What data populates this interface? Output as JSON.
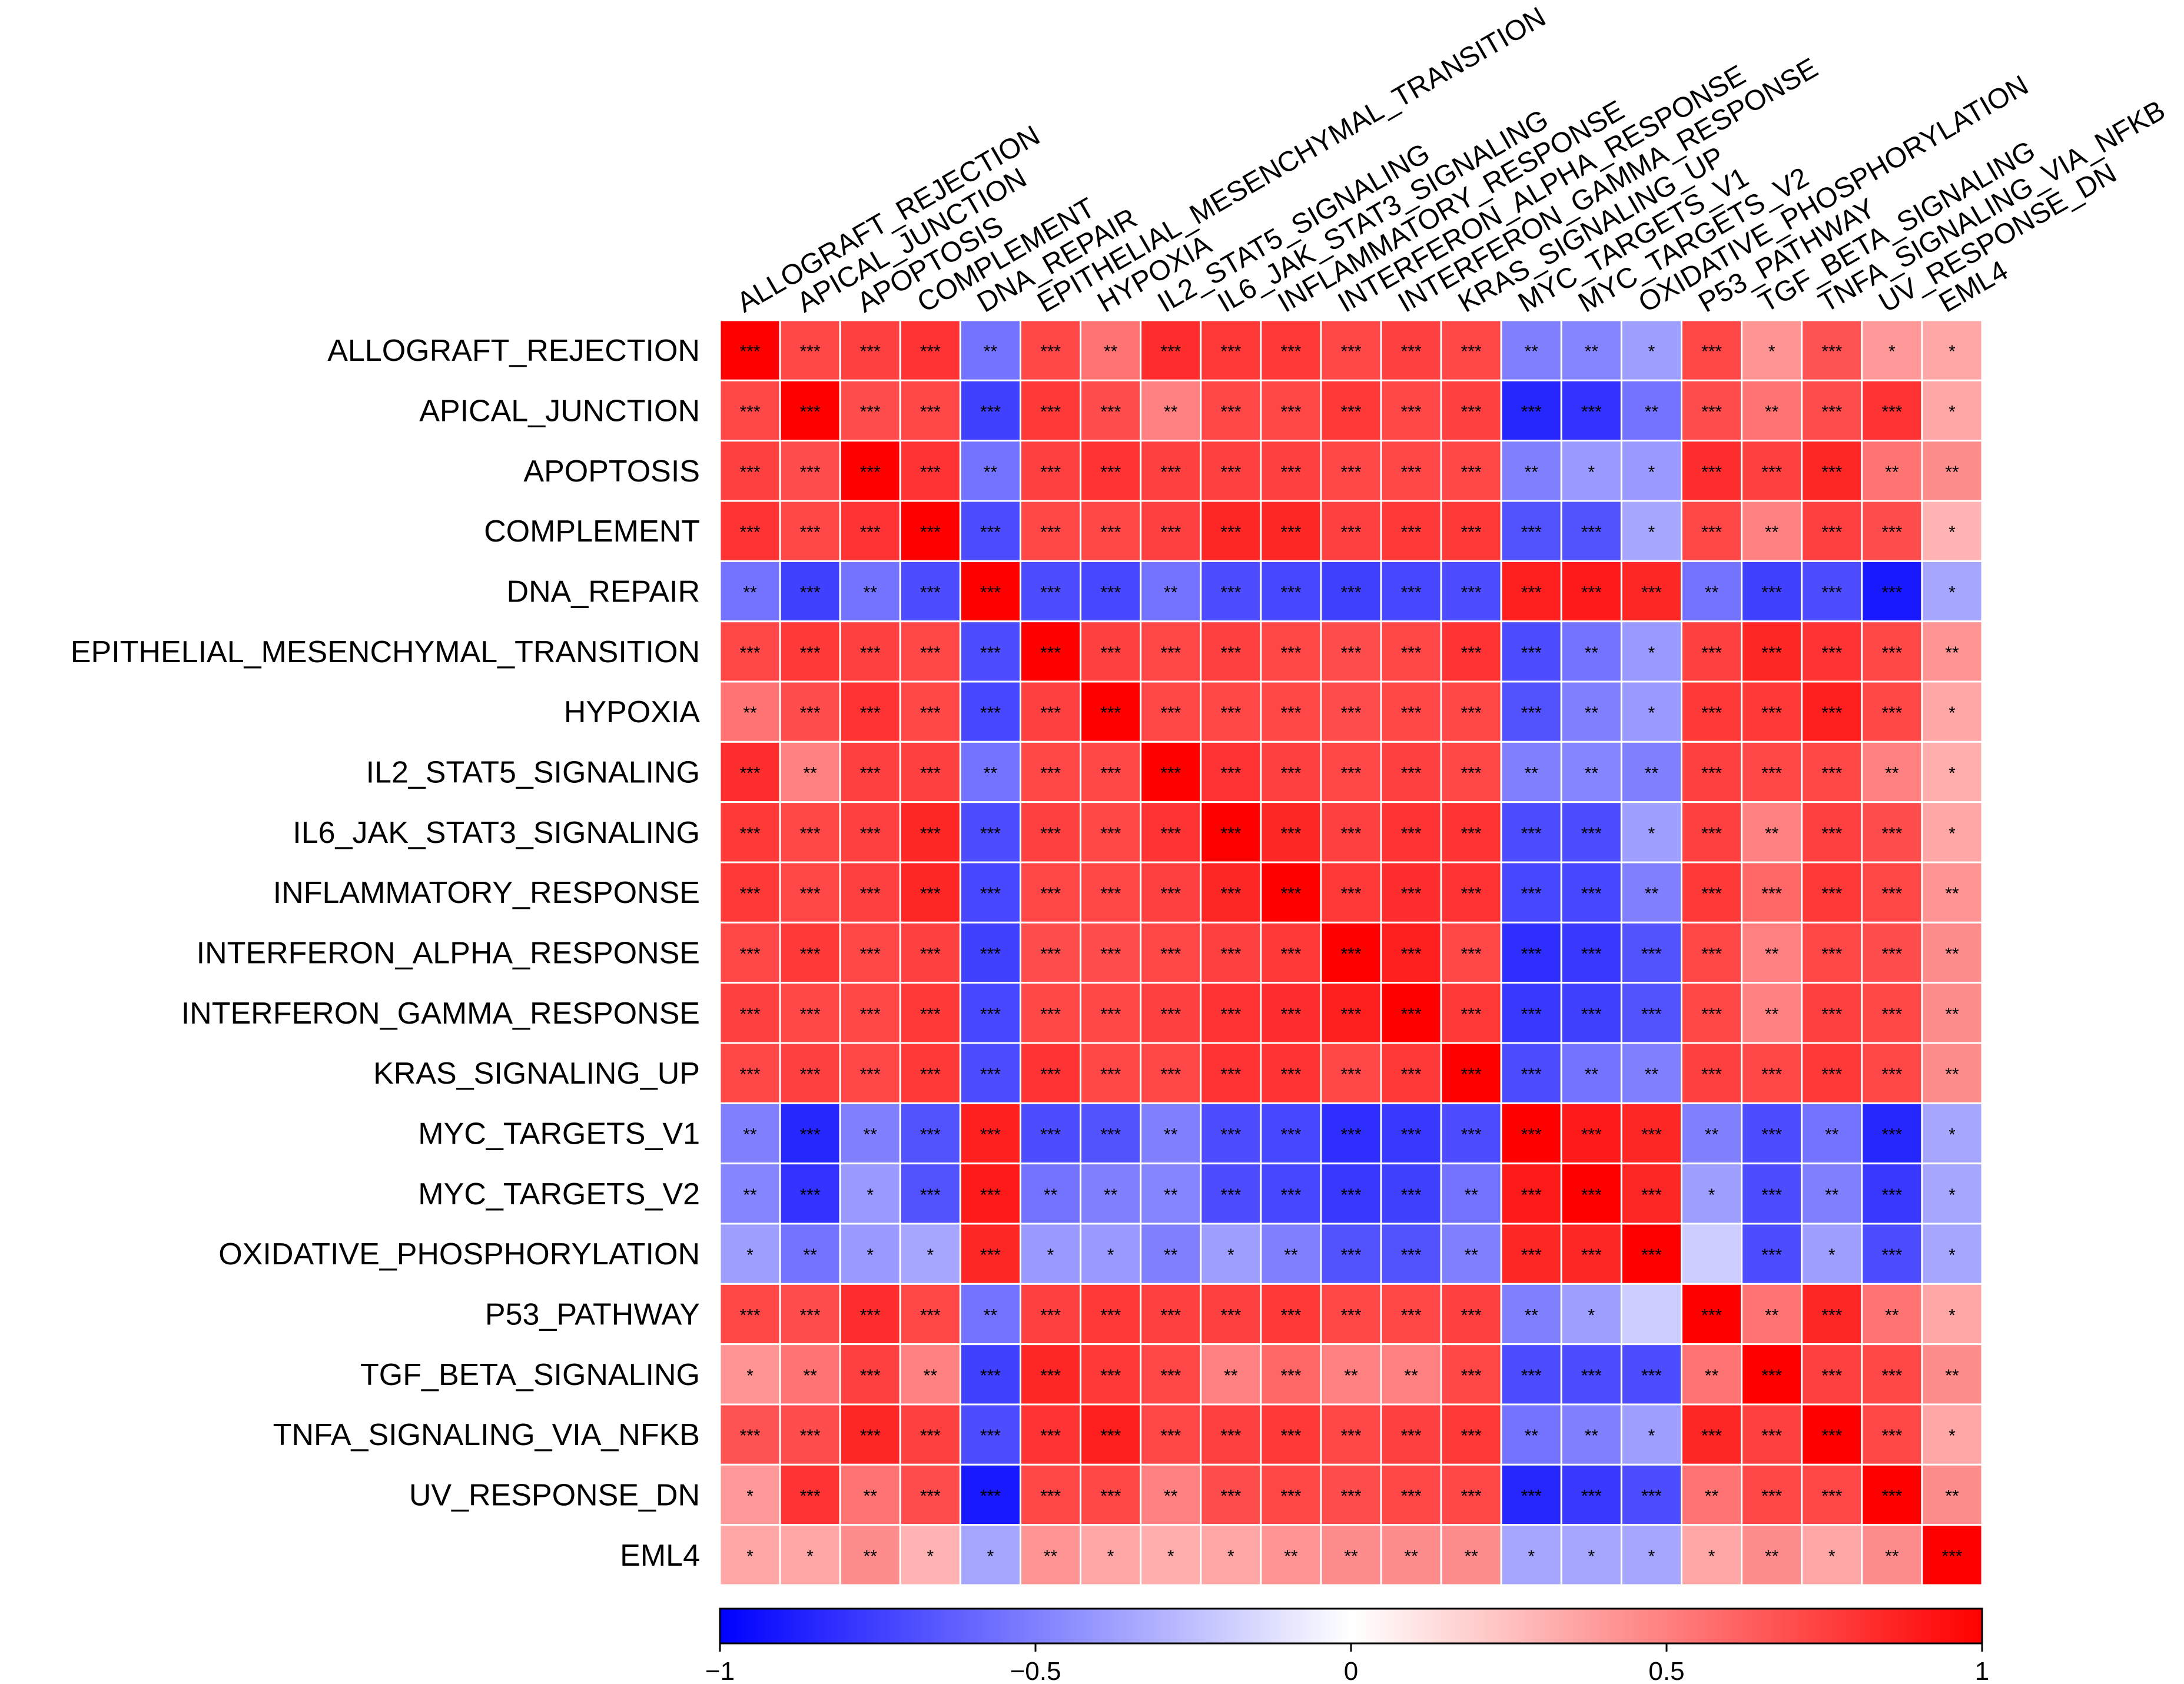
{
  "chart_data": {
    "type": "heatmap",
    "x_categories": [
      "ALLOGRAFT_REJECTION",
      "APICAL_JUNCTION",
      "APOPTOSIS",
      "COMPLEMENT",
      "DNA_REPAIR",
      "EPITHELIAL_MESENCHYMAL_TRANSITION",
      "HYPOXIA",
      "IL2_STAT5_SIGNALING",
      "IL6_JAK_STAT3_SIGNALING",
      "INFLAMMATORY_RESPONSE",
      "INTERFERON_ALPHA_RESPONSE",
      "INTERFERON_GAMMA_RESPONSE",
      "KRAS_SIGNALING_UP",
      "MYC_TARGETS_V1",
      "MYC_TARGETS_V2",
      "OXIDATIVE_PHOSPHORYLATION",
      "P53_PATHWAY",
      "TGF_BETA_SIGNALING",
      "TNFA_SIGNALING_VIA_NFKB",
      "UV_RESPONSE_DN",
      "EML4"
    ],
    "y_categories": [
      "ALLOGRAFT_REJECTION",
      "APICAL_JUNCTION",
      "APOPTOSIS",
      "COMPLEMENT",
      "DNA_REPAIR",
      "EPITHELIAL_MESENCHYMAL_TRANSITION",
      "HYPOXIA",
      "IL2_STAT5_SIGNALING",
      "IL6_JAK_STAT3_SIGNALING",
      "INFLAMMATORY_RESPONSE",
      "INTERFERON_ALPHA_RESPONSE",
      "INTERFERON_GAMMA_RESPONSE",
      "KRAS_SIGNALING_UP",
      "MYC_TARGETS_V1",
      "MYC_TARGETS_V2",
      "OXIDATIVE_PHOSPHORYLATION",
      "P53_PATHWAY",
      "TGF_BETA_SIGNALING",
      "TNFA_SIGNALING_VIA_NFKB",
      "UV_RESPONSE_DN",
      "EML4"
    ],
    "values": [
      [
        1,
        0.72,
        0.75,
        0.8,
        -0.55,
        0.72,
        0.55,
        0.82,
        0.78,
        0.78,
        0.72,
        0.75,
        0.72,
        -0.5,
        -0.48,
        -0.38,
        0.72,
        0.42,
        0.68,
        0.4,
        0.35
      ],
      [
        0.72,
        1,
        0.7,
        0.72,
        -0.75,
        0.78,
        0.7,
        0.5,
        0.72,
        0.72,
        0.78,
        0.72,
        0.75,
        -0.85,
        -0.8,
        -0.55,
        0.7,
        0.55,
        0.7,
        0.8,
        0.35
      ],
      [
        0.75,
        0.7,
        1,
        0.8,
        -0.55,
        0.75,
        0.8,
        0.75,
        0.75,
        0.75,
        0.72,
        0.72,
        0.72,
        -0.5,
        -0.4,
        -0.4,
        0.82,
        0.75,
        0.85,
        0.55,
        0.45
      ],
      [
        0.8,
        0.72,
        0.8,
        1,
        -0.7,
        0.72,
        0.72,
        0.75,
        0.85,
        0.85,
        0.75,
        0.78,
        0.78,
        -0.68,
        -0.68,
        -0.35,
        0.72,
        0.5,
        0.75,
        0.7,
        0.3
      ],
      [
        -0.55,
        -0.75,
        -0.55,
        -0.7,
        1,
        -0.7,
        -0.72,
        -0.55,
        -0.7,
        -0.72,
        -0.75,
        -0.72,
        -0.7,
        0.88,
        0.9,
        0.85,
        -0.55,
        -0.75,
        -0.7,
        -0.9,
        -0.35
      ],
      [
        0.72,
        0.78,
        0.75,
        0.72,
        -0.7,
        1,
        0.75,
        0.72,
        0.75,
        0.72,
        0.7,
        0.72,
        0.8,
        -0.7,
        -0.55,
        -0.4,
        0.75,
        0.85,
        0.8,
        0.72,
        0.42
      ],
      [
        0.55,
        0.7,
        0.8,
        0.72,
        -0.72,
        0.75,
        1,
        0.72,
        0.72,
        0.72,
        0.7,
        0.72,
        0.72,
        -0.68,
        -0.5,
        -0.4,
        0.78,
        0.78,
        0.88,
        0.72,
        0.35
      ],
      [
        0.82,
        0.5,
        0.75,
        0.75,
        -0.55,
        0.72,
        0.72,
        1,
        0.8,
        0.75,
        0.72,
        0.75,
        0.72,
        -0.5,
        -0.48,
        -0.5,
        0.75,
        0.72,
        0.72,
        0.5,
        0.32
      ],
      [
        0.78,
        0.72,
        0.75,
        0.85,
        -0.7,
        0.75,
        0.72,
        0.8,
        1,
        0.85,
        0.75,
        0.8,
        0.8,
        -0.7,
        -0.7,
        -0.38,
        0.75,
        0.5,
        0.75,
        0.7,
        0.35
      ],
      [
        0.78,
        0.72,
        0.75,
        0.85,
        -0.72,
        0.72,
        0.72,
        0.75,
        0.85,
        1,
        0.78,
        0.82,
        0.8,
        -0.72,
        -0.72,
        -0.5,
        0.78,
        0.6,
        0.78,
        0.72,
        0.42
      ],
      [
        0.72,
        0.78,
        0.72,
        0.75,
        -0.75,
        0.7,
        0.7,
        0.72,
        0.75,
        0.78,
        1,
        0.88,
        0.72,
        -0.82,
        -0.78,
        -0.68,
        0.72,
        0.5,
        0.72,
        0.7,
        0.45
      ],
      [
        0.75,
        0.72,
        0.72,
        0.78,
        -0.72,
        0.72,
        0.72,
        0.75,
        0.8,
        0.82,
        0.88,
        1,
        0.78,
        -0.78,
        -0.75,
        -0.68,
        0.72,
        0.5,
        0.75,
        0.72,
        0.45
      ],
      [
        0.72,
        0.75,
        0.72,
        0.78,
        -0.7,
        0.8,
        0.72,
        0.72,
        0.8,
        0.8,
        0.72,
        0.78,
        1,
        -0.7,
        -0.55,
        -0.5,
        0.75,
        0.72,
        0.78,
        0.72,
        0.45
      ],
      [
        -0.5,
        -0.85,
        -0.5,
        -0.68,
        0.88,
        -0.7,
        -0.68,
        -0.5,
        -0.7,
        -0.72,
        -0.82,
        -0.78,
        -0.7,
        1,
        0.9,
        0.85,
        -0.5,
        -0.7,
        -0.55,
        -0.85,
        -0.35
      ],
      [
        -0.48,
        -0.8,
        -0.4,
        -0.68,
        0.9,
        -0.55,
        -0.5,
        -0.48,
        -0.7,
        -0.72,
        -0.78,
        -0.75,
        -0.55,
        0.9,
        1,
        0.85,
        -0.38,
        -0.7,
        -0.5,
        -0.78,
        -0.35
      ],
      [
        -0.38,
        -0.55,
        -0.4,
        -0.35,
        0.85,
        -0.4,
        -0.4,
        -0.5,
        -0.38,
        -0.5,
        -0.68,
        -0.68,
        -0.5,
        0.85,
        0.85,
        1,
        -0.2,
        -0.7,
        -0.38,
        -0.7,
        -0.35
      ],
      [
        0.72,
        0.7,
        0.82,
        0.72,
        -0.55,
        0.75,
        0.78,
        0.75,
        0.75,
        0.78,
        0.72,
        0.72,
        0.75,
        -0.5,
        -0.38,
        -0.2,
        1,
        0.55,
        0.85,
        0.55,
        0.35
      ],
      [
        0.42,
        0.55,
        0.75,
        0.5,
        -0.75,
        0.85,
        0.78,
        0.72,
        0.5,
        0.6,
        0.5,
        0.5,
        0.72,
        -0.7,
        -0.7,
        -0.7,
        0.55,
        1,
        0.75,
        0.72,
        0.45
      ],
      [
        0.68,
        0.7,
        0.85,
        0.75,
        -0.7,
        0.8,
        0.88,
        0.72,
        0.75,
        0.78,
        0.72,
        0.75,
        0.78,
        -0.55,
        -0.5,
        -0.38,
        0.85,
        0.75,
        1,
        0.72,
        0.35
      ],
      [
        0.4,
        0.8,
        0.55,
        0.7,
        -0.9,
        0.72,
        0.72,
        0.5,
        0.7,
        0.72,
        0.7,
        0.72,
        0.72,
        -0.85,
        -0.78,
        -0.7,
        0.55,
        0.72,
        0.72,
        1,
        0.45
      ],
      [
        0.35,
        0.35,
        0.45,
        0.3,
        -0.35,
        0.42,
        0.35,
        0.32,
        0.35,
        0.42,
        0.45,
        0.45,
        0.45,
        -0.35,
        -0.35,
        -0.35,
        0.35,
        0.45,
        0.35,
        0.45,
        1
      ]
    ],
    "annotations": [
      [
        "***",
        "***",
        "***",
        "***",
        "**",
        "***",
        "**",
        "***",
        "***",
        "***",
        "***",
        "***",
        "***",
        "**",
        "**",
        "*",
        "***",
        "*",
        "***",
        "*",
        "*"
      ],
      [
        "***",
        "***",
        "***",
        "***",
        "***",
        "***",
        "***",
        "**",
        "***",
        "***",
        "***",
        "***",
        "***",
        "***",
        "***",
        "**",
        "***",
        "**",
        "***",
        "***",
        "*"
      ],
      [
        "***",
        "***",
        "***",
        "***",
        "**",
        "***",
        "***",
        "***",
        "***",
        "***",
        "***",
        "***",
        "***",
        "**",
        "*",
        "*",
        "***",
        "***",
        "***",
        "**",
        "**"
      ],
      [
        "***",
        "***",
        "***",
        "***",
        "***",
        "***",
        "***",
        "***",
        "***",
        "***",
        "***",
        "***",
        "***",
        "***",
        "***",
        "*",
        "***",
        "**",
        "***",
        "***",
        "*"
      ],
      [
        "**",
        "***",
        "**",
        "***",
        "***",
        "***",
        "***",
        "**",
        "***",
        "***",
        "***",
        "***",
        "***",
        "***",
        "***",
        "***",
        "**",
        "***",
        "***",
        "***",
        "*"
      ],
      [
        "***",
        "***",
        "***",
        "***",
        "***",
        "***",
        "***",
        "***",
        "***",
        "***",
        "***",
        "***",
        "***",
        "***",
        "**",
        "*",
        "***",
        "***",
        "***",
        "***",
        "**"
      ],
      [
        "**",
        "***",
        "***",
        "***",
        "***",
        "***",
        "***",
        "***",
        "***",
        "***",
        "***",
        "***",
        "***",
        "***",
        "**",
        "*",
        "***",
        "***",
        "***",
        "***",
        "*"
      ],
      [
        "***",
        "**",
        "***",
        "***",
        "**",
        "***",
        "***",
        "***",
        "***",
        "***",
        "***",
        "***",
        "***",
        "**",
        "**",
        "**",
        "***",
        "***",
        "***",
        "**",
        "*"
      ],
      [
        "***",
        "***",
        "***",
        "***",
        "***",
        "***",
        "***",
        "***",
        "***",
        "***",
        "***",
        "***",
        "***",
        "***",
        "***",
        "*",
        "***",
        "**",
        "***",
        "***",
        "*"
      ],
      [
        "***",
        "***",
        "***",
        "***",
        "***",
        "***",
        "***",
        "***",
        "***",
        "***",
        "***",
        "***",
        "***",
        "***",
        "***",
        "**",
        "***",
        "***",
        "***",
        "***",
        "**"
      ],
      [
        "***",
        "***",
        "***",
        "***",
        "***",
        "***",
        "***",
        "***",
        "***",
        "***",
        "***",
        "***",
        "***",
        "***",
        "***",
        "***",
        "***",
        "**",
        "***",
        "***",
        "**"
      ],
      [
        "***",
        "***",
        "***",
        "***",
        "***",
        "***",
        "***",
        "***",
        "***",
        "***",
        "***",
        "***",
        "***",
        "***",
        "***",
        "***",
        "***",
        "**",
        "***",
        "***",
        "**"
      ],
      [
        "***",
        "***",
        "***",
        "***",
        "***",
        "***",
        "***",
        "***",
        "***",
        "***",
        "***",
        "***",
        "***",
        "***",
        "**",
        "**",
        "***",
        "***",
        "***",
        "***",
        "**"
      ],
      [
        "**",
        "***",
        "**",
        "***",
        "***",
        "***",
        "***",
        "**",
        "***",
        "***",
        "***",
        "***",
        "***",
        "***",
        "***",
        "***",
        "**",
        "***",
        "**",
        "***",
        "*"
      ],
      [
        "**",
        "***",
        "*",
        "***",
        "***",
        "**",
        "**",
        "**",
        "***",
        "***",
        "***",
        "***",
        "**",
        "***",
        "***",
        "***",
        "*",
        "***",
        "**",
        "***",
        "*"
      ],
      [
        "*",
        "**",
        "*",
        "*",
        "***",
        "*",
        "*",
        "**",
        "*",
        "**",
        "***",
        "***",
        "**",
        "***",
        "***",
        "***",
        null,
        "***",
        "*",
        "***",
        "*"
      ],
      [
        "***",
        "***",
        "***",
        "***",
        "**",
        "***",
        "***",
        "***",
        "***",
        "***",
        "***",
        "***",
        "***",
        "**",
        "*",
        null,
        "***",
        "**",
        "***",
        "**",
        "*"
      ],
      [
        "*",
        "**",
        "***",
        "**",
        "***",
        "***",
        "***",
        "***",
        "**",
        "***",
        "**",
        "**",
        "***",
        "***",
        "***",
        "***",
        "**",
        "***",
        "***",
        "***",
        "**"
      ],
      [
        "***",
        "***",
        "***",
        "***",
        "***",
        "***",
        "***",
        "***",
        "***",
        "***",
        "***",
        "***",
        "***",
        "**",
        "**",
        "*",
        "***",
        "***",
        "***",
        "***",
        "*"
      ],
      [
        "*",
        "***",
        "**",
        "***",
        "***",
        "***",
        "***",
        "**",
        "***",
        "***",
        "***",
        "***",
        "***",
        "***",
        "***",
        "***",
        "**",
        "***",
        "***",
        "***",
        "**"
      ],
      [
        "*",
        "*",
        "**",
        "*",
        "*",
        "**",
        "*",
        "*",
        "*",
        "**",
        "**",
        "**",
        "**",
        "*",
        "*",
        "*",
        "*",
        "**",
        "*",
        "**",
        "***"
      ]
    ],
    "colors": {
      "low": "#0000ff",
      "mid": "#ffffff",
      "high": "#ff0000"
    },
    "zlim": [
      -1,
      1
    ],
    "zticks": [
      {
        "value": -1,
        "label": "−1"
      },
      {
        "value": -0.5,
        "label": "−0.5"
      },
      0,
      0.5,
      1
    ]
  }
}
